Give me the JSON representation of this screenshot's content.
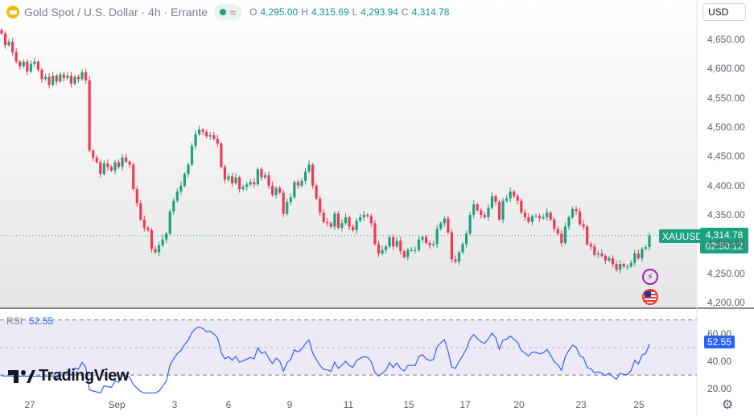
{
  "header": {
    "symbol_title": "Gold Spot / U.S. Dollar · 4h · Errante",
    "ohlc": [
      {
        "k": "O",
        "v": "4,295.00"
      },
      {
        "k": "H",
        "v": "4,315.69"
      },
      {
        "k": "L",
        "v": "4,293.94"
      },
      {
        "k": "C",
        "v": "4,314.78"
      }
    ],
    "currency": "USD"
  },
  "colors": {
    "up": "#1ba17e",
    "down": "#ef3a4f",
    "rsi_line": "#2962ff",
    "rsi_band": "#ede9f6",
    "pane_bg": "#e6e6e6"
  },
  "icons": {
    "symbol": "gold-bars-icon",
    "bolt": "lightning-bolt-icon",
    "flag": "us-flag-icon",
    "settings": "gear-icon",
    "logo": "tradingview-logo"
  },
  "price_panel": {
    "symbol_label": "XAUUSD",
    "last_price": "4,314.78",
    "countdown": "02:50:12"
  },
  "rsi_panel": {
    "name": "RSI",
    "value": "52.55",
    "tag": "52.55"
  },
  "branding": {
    "logo_text": "TradingView"
  },
  "chart_data": {
    "type": "candlestick",
    "title": "Gold Spot / U.S. Dollar · 4h · Errante",
    "x_tick_labels": [
      "27",
      "Sep",
      "3",
      "6",
      "9",
      "11",
      "15",
      "17",
      "20",
      "23",
      "25"
    ],
    "y_tick_labels": [
      "4,650.00",
      "4,600.00",
      "4,550.00",
      "4,500.00",
      "4,450.00",
      "4,400.00",
      "4,350.00",
      "4,300.00",
      "4,250.00",
      "4,200.00"
    ],
    "y_ticks": [
      4650,
      4600,
      4550,
      4500,
      4450,
      4400,
      4350,
      4300,
      4250,
      4200
    ],
    "ylim": [
      4192,
      4676
    ],
    "last_close": 4314.78,
    "closes": [
      4660,
      4640,
      4646,
      4628,
      4612,
      4604,
      4612,
      4595,
      4608,
      4612,
      4598,
      4582,
      4586,
      4572,
      4588,
      4578,
      4590,
      4584,
      4588,
      4574,
      4586,
      4582,
      4594,
      4580,
      4460,
      4448,
      4440,
      4420,
      4438,
      4432,
      4426,
      4440,
      4432,
      4448,
      4441,
      4436,
      4394,
      4370,
      4342,
      4328,
      4324,
      4292,
      4286,
      4298,
      4308,
      4318,
      4356,
      4374,
      4390,
      4400,
      4420,
      4436,
      4468,
      4488,
      4496,
      4492,
      4484,
      4486,
      4480,
      4472,
      4432,
      4410,
      4416,
      4404,
      4414,
      4394,
      4398,
      4402,
      4406,
      4402,
      4428,
      4414,
      4418,
      4400,
      4384,
      4396,
      4388,
      4352,
      4372,
      4380,
      4406,
      4400,
      4408,
      4424,
      4436,
      4400,
      4378,
      4354,
      4338,
      4336,
      4330,
      4352,
      4328,
      4336,
      4346,
      4330,
      4324,
      4340,
      4346,
      4350,
      4348,
      4336,
      4300,
      4284,
      4290,
      4296,
      4312,
      4296,
      4306,
      4288,
      4278,
      4290,
      4290,
      4290,
      4308,
      4312,
      4302,
      4298,
      4300,
      4326,
      4336,
      4344,
      4320,
      4274,
      4270,
      4286,
      4300,
      4318,
      4350,
      4368,
      4358,
      4350,
      4346,
      4362,
      4382,
      4372,
      4342,
      4374,
      4378,
      4390,
      4382,
      4374,
      4354,
      4346,
      4338,
      4348,
      4348,
      4344,
      4346,
      4354,
      4342,
      4326,
      4318,
      4302,
      4330,
      4346,
      4360,
      4356,
      4334,
      4330,
      4300,
      4296,
      4282,
      4284,
      4280,
      4272,
      4276,
      4266,
      4256,
      4266,
      4262,
      4262,
      4268,
      4284,
      4276,
      4292,
      4295,
      4314.78
    ],
    "rsi_label": "RSI",
    "rsi_value": 52.55,
    "rsi_ticks": [
      60,
      40,
      20
    ],
    "rsi_tick_labels": [
      "60.00",
      "40.00",
      "20.00"
    ],
    "rsi_band": [
      30,
      70
    ],
    "rsi_mid": 50,
    "rsi_ylim": [
      16,
      78
    ]
  }
}
